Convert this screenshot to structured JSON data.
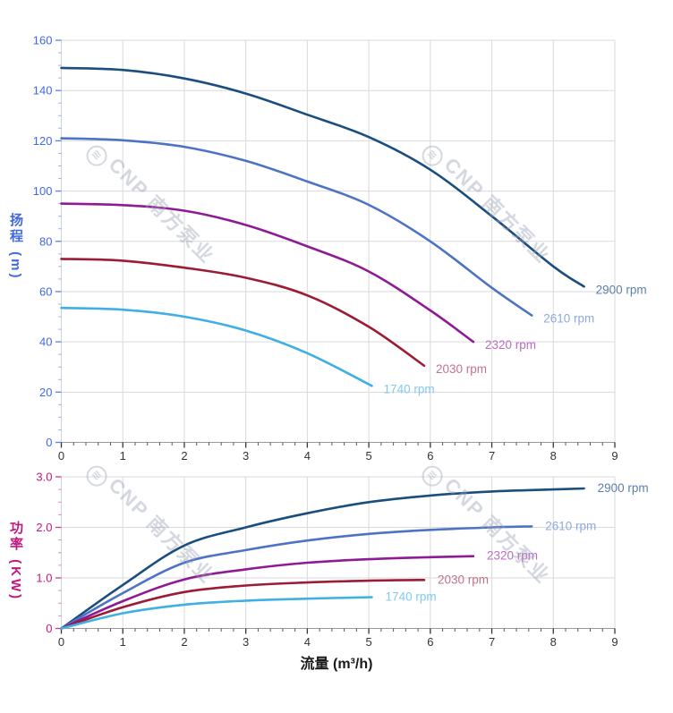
{
  "watermark": {
    "logo_glyph": "≋",
    "text": "CNP 南方泵业"
  },
  "colors": {
    "grid": "#dadada",
    "x_tick": "#333333",
    "x_tick_label": "#333333",
    "x_axis_line": "#999999",
    "y_axis_line": "#cfd4de",
    "x_title": "#1a1a1a",
    "head_axis": "#4169e1",
    "power_axis": "#c2187e"
  },
  "chart_data": [
    {
      "type": "line",
      "title": "",
      "xlabel": "",
      "ylabel": "扬程 (m)",
      "xlim": [
        0,
        9
      ],
      "ylim": [
        0,
        160
      ],
      "x_major": 1,
      "x_minor": 0.2,
      "y_major": 20,
      "y_minor": 5,
      "grid": "on",
      "legend_position": "at-line-ends",
      "axis_color": "#4169e1",
      "x_tick_labels": [
        "0",
        "1",
        "2",
        "3",
        "4",
        "5",
        "6",
        "7",
        "8",
        "9"
      ],
      "y_tick_labels": [
        "0",
        "20",
        "40",
        "60",
        "80",
        "100",
        "120",
        "140",
        "160"
      ],
      "series": [
        {
          "name": "2900 rpm",
          "color": "#1a4e7e",
          "label_color": "#5d80a9",
          "points": [
            [
              0,
              149
            ],
            [
              1,
              148.2
            ],
            [
              2,
              144.8
            ],
            [
              3,
              138.8
            ],
            [
              4,
              130.4
            ],
            [
              5,
              121.5
            ],
            [
              6,
              108.5
            ],
            [
              7,
              90
            ],
            [
              8,
              70
            ],
            [
              8.5,
              62
            ]
          ]
        },
        {
          "name": "2610 rpm",
          "color": "#4d74c4",
          "label_color": "#8ea9de",
          "points": [
            [
              0,
              121
            ],
            [
              1,
              120.2
            ],
            [
              2,
              117.6
            ],
            [
              3,
              112
            ],
            [
              4,
              103.8
            ],
            [
              5,
              94.5
            ],
            [
              6,
              80
            ],
            [
              7,
              61.5
            ],
            [
              7.65,
              50.5
            ]
          ]
        },
        {
          "name": "2320 rpm",
          "color": "#8f1a96",
          "label_color": "#ba6cc0",
          "points": [
            [
              0,
              95
            ],
            [
              1,
              94.4
            ],
            [
              2,
              92.2
            ],
            [
              3,
              86.5
            ],
            [
              4,
              78
            ],
            [
              5,
              68
            ],
            [
              6,
              52.5
            ],
            [
              6.7,
              40
            ]
          ]
        },
        {
          "name": "2030 rpm",
          "color": "#9c1b35",
          "label_color": "#c17489",
          "points": [
            [
              0,
              73
            ],
            [
              1,
              72.3
            ],
            [
              2,
              69.5
            ],
            [
              3,
              65.5
            ],
            [
              4,
              58.5
            ],
            [
              5,
              46
            ],
            [
              5.9,
              30.5
            ]
          ]
        },
        {
          "name": "1740 rpm",
          "color": "#3fafe4",
          "label_color": "#82c8ef",
          "points": [
            [
              0,
              53.5
            ],
            [
              1,
              52.8
            ],
            [
              2,
              50
            ],
            [
              3,
              44.5
            ],
            [
              4,
              35.5
            ],
            [
              5.05,
              22.5
            ]
          ]
        }
      ]
    },
    {
      "type": "line",
      "title": "",
      "xlabel": "流量 (m³/h)",
      "ylabel": "功率 (KW)",
      "xlim": [
        0,
        9
      ],
      "ylim": [
        0,
        3
      ],
      "x_major": 1,
      "x_minor": 0.2,
      "y_major": 1,
      "y_minor": 0.25,
      "grid": "on",
      "legend_position": "at-line-ends",
      "axis_color": "#c2187e",
      "x_tick_labels": [
        "0",
        "1",
        "2",
        "3",
        "4",
        "5",
        "6",
        "7",
        "8",
        "9"
      ],
      "y_tick_labels": [
        "0",
        "1.0",
        "2.0",
        "3.0"
      ],
      "series": [
        {
          "name": "2900 rpm",
          "color": "#1a4e7e",
          "label_color": "#5d80a9",
          "points": [
            [
              0,
              0
            ],
            [
              1,
              0.86
            ],
            [
              2,
              1.64
            ],
            [
              3,
              2.0
            ],
            [
              4,
              2.28
            ],
            [
              5,
              2.5
            ],
            [
              6,
              2.63
            ],
            [
              7,
              2.71
            ],
            [
              8,
              2.75
            ],
            [
              8.5,
              2.77
            ]
          ]
        },
        {
          "name": "2610 rpm",
          "color": "#4d74c4",
          "label_color": "#8ea9de",
          "points": [
            [
              0,
              0
            ],
            [
              1,
              0.7
            ],
            [
              2,
              1.3
            ],
            [
              3,
              1.55
            ],
            [
              4,
              1.74
            ],
            [
              5,
              1.87
            ],
            [
              6,
              1.95
            ],
            [
              7,
              2.0
            ],
            [
              7.65,
              2.02
            ]
          ]
        },
        {
          "name": "2320 rpm",
          "color": "#8f1a96",
          "label_color": "#ba6cc0",
          "points": [
            [
              0,
              0
            ],
            [
              1,
              0.54
            ],
            [
              2,
              0.97
            ],
            [
              3,
              1.17
            ],
            [
              4,
              1.3
            ],
            [
              5,
              1.37
            ],
            [
              6,
              1.41
            ],
            [
              6.7,
              1.43
            ]
          ]
        },
        {
          "name": "2030 rpm",
          "color": "#9c1b35",
          "label_color": "#c17489",
          "points": [
            [
              0,
              0
            ],
            [
              1,
              0.42
            ],
            [
              2,
              0.72
            ],
            [
              3,
              0.85
            ],
            [
              4,
              0.91
            ],
            [
              5,
              0.945
            ],
            [
              5.9,
              0.96
            ]
          ]
        },
        {
          "name": "1740 rpm",
          "color": "#3fafe4",
          "label_color": "#82c8ef",
          "points": [
            [
              0,
              0
            ],
            [
              1,
              0.3
            ],
            [
              2,
              0.47
            ],
            [
              3,
              0.55
            ],
            [
              4,
              0.59
            ],
            [
              5.05,
              0.62
            ]
          ]
        }
      ]
    }
  ]
}
